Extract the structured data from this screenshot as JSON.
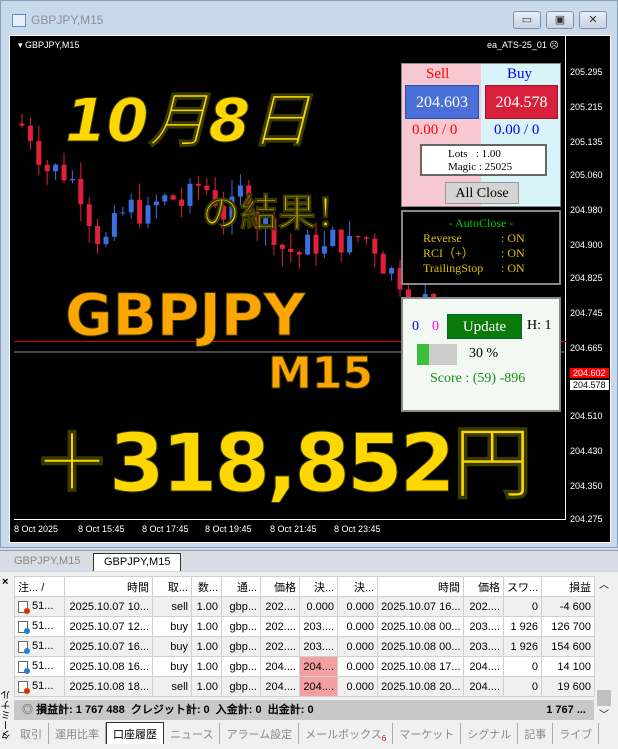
{
  "window": {
    "title": "GBPJPY,M15",
    "minimize": "▭",
    "maximize": "▣",
    "close": "✕"
  },
  "chart": {
    "symbol": "GBPJPY,M15",
    "ea_name": "ea_ATS-25_01",
    "ea_status_icon": "sad-face-icon",
    "price_labels": [
      "205.295",
      "205.215",
      "205.135",
      "205.060",
      "204.980",
      "204.900",
      "204.825",
      "204.745",
      "204.665",
      "204.510",
      "204.430",
      "204.350",
      "204.275"
    ],
    "bid_label": "204.602",
    "ask_label": "204.578",
    "bid_color": "#ff0000",
    "time_labels": [
      "8 Oct 2025",
      "8 Oct 15:45",
      "8 Oct 17:45",
      "8 Oct 19:45",
      "8 Oct 21:45",
      "8 Oct 23:45"
    ],
    "up_color": "#3a6fe0",
    "down_color": "#e0203c"
  },
  "overlay": {
    "date": "10月8日",
    "result": "の結果！",
    "pair": "GBPJPY",
    "tf": "M15",
    "profit": "＋318,852円"
  },
  "ea_panel": {
    "sell_label": "Sell",
    "buy_label": "Buy",
    "sell_price": "204.603",
    "buy_price": "204.578",
    "sell_pos": "0.00 / 0",
    "buy_pos": "0.00 / 0",
    "lots": "Lots   : 1.00",
    "magic": "Magic : 25025",
    "all_close": "All Close",
    "autoclose_title": "- AutoClose -",
    "autoclose": [
      {
        "name": "Reverse",
        "value": ": ON"
      },
      {
        "name": "RCI（+）",
        "value": ": ON"
      },
      {
        "name": "TrailingStop",
        "value": ": ON"
      }
    ],
    "count_blue": "0",
    "count_magenta": "0",
    "update": "Update",
    "h": "H: 1",
    "progress_percent": 30,
    "progress_label": "30 %",
    "score": "Score : (59) -896"
  },
  "chart_tabs": [
    {
      "label": "GBPJPY,M15",
      "active": false
    },
    {
      "label": "GBPJPY,M15",
      "active": true
    }
  ],
  "terminal": {
    "side_label": "ターミナル",
    "columns": [
      "注... /",
      "時間",
      "取...",
      "数...",
      "通...",
      "価格",
      "決...",
      "決...",
      "時間",
      "価格",
      "スワ...",
      "損益"
    ],
    "rows": [
      {
        "type": "sell",
        "cells": [
          "51...",
          "2025.10.07 10...",
          "sell",
          "1.00",
          "gbp...",
          "202....",
          "0.000",
          "0.000",
          "2025.10.07 16...",
          "202....",
          "0",
          "-4 600"
        ],
        "highlight": false
      },
      {
        "type": "buy",
        "cells": [
          "51...",
          "2025.10.07 12...",
          "buy",
          "1.00",
          "gbp...",
          "202....",
          "203....",
          "0.000",
          "2025.10.08 00...",
          "203....",
          "1 926",
          "126 700"
        ],
        "highlight": false
      },
      {
        "type": "buy",
        "cells": [
          "51...",
          "2025.10.07 16...",
          "buy",
          "1.00",
          "gbp...",
          "202....",
          "203....",
          "0.000",
          "2025.10.08 00...",
          "203....",
          "1 926",
          "154 600"
        ],
        "highlight": false
      },
      {
        "type": "buy",
        "cells": [
          "51...",
          "2025.10.08 16...",
          "buy",
          "1.00",
          "gbp...",
          "204....",
          "204....",
          "0.000",
          "2025.10.08 17...",
          "204....",
          "0",
          "14 100"
        ],
        "highlight": true
      },
      {
        "type": "sell",
        "cells": [
          "51...",
          "2025.10.08 18...",
          "sell",
          "1.00",
          "gbp...",
          "204....",
          "204....",
          "0.000",
          "2025.10.08 20...",
          "204....",
          "0",
          "19 600"
        ],
        "highlight": true
      }
    ],
    "summary": "損益計: 1 767 488  クレジット計: 0  入金計: 0  出金計: 0",
    "summary_total": "1 767 ...",
    "tabs": [
      {
        "label": "取引"
      },
      {
        "label": "運用比率"
      },
      {
        "label": "口座履歴",
        "active": true
      },
      {
        "label": "ニュース"
      },
      {
        "label": "アラーム設定"
      },
      {
        "label": "メールボックス",
        "badge": "6"
      },
      {
        "label": "マーケット"
      },
      {
        "label": "シグナル"
      },
      {
        "label": "記事"
      },
      {
        "label": "ライブ"
      }
    ]
  }
}
